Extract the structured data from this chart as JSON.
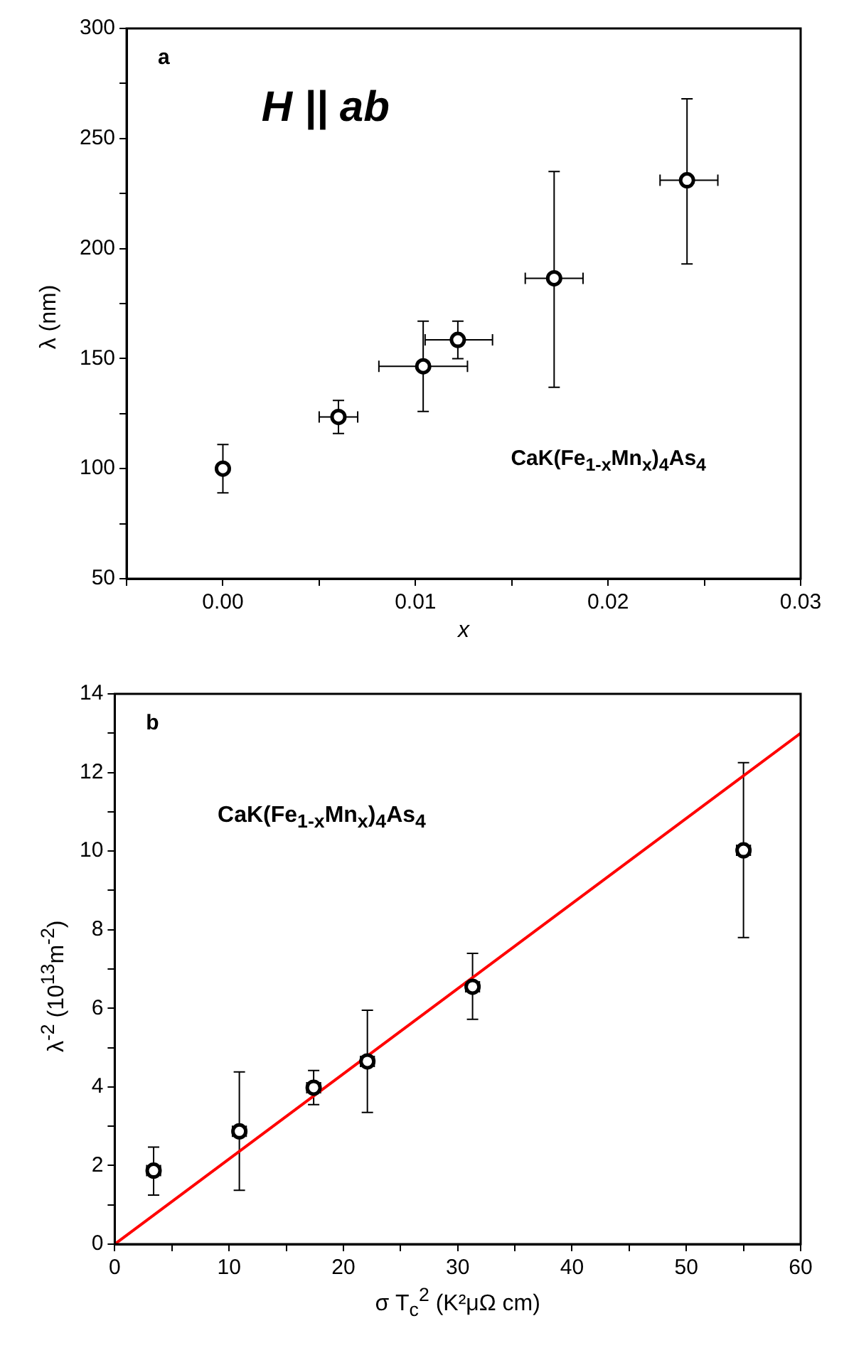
{
  "chart_data": [
    {
      "type": "scatter",
      "title": "a",
      "xlabel": "x",
      "ylabel": "λ (nm)",
      "annotations": [
        "H || ab",
        "CaK(Fe$_{1-x}$Mn$_{x}$)$_{4}$As$_{4}$"
      ],
      "marker": "circle",
      "xlim": [
        -0.005,
        0.03
      ],
      "xticks": [
        {
          "value": -0.005,
          "label": null
        },
        {
          "value": 0,
          "label": "0.00"
        },
        {
          "value": 0.005,
          "label": null
        },
        {
          "value": 0.01,
          "label": "0.01"
        },
        {
          "value": 0.015,
          "label": null
        },
        {
          "value": 0.02,
          "label": "0.02"
        },
        {
          "value": 0.025,
          "label": null
        },
        {
          "value": 0.03,
          "label": "0.03"
        }
      ],
      "ylim": [
        50,
        300
      ],
      "yticks": [
        50,
        {
          "value": 75,
          "label": null
        },
        100,
        {
          "value": 125,
          "label": null
        },
        150,
        {
          "value": 175,
          "label": null
        },
        200,
        {
          "value": 225,
          "label": null
        },
        250,
        {
          "value": 275,
          "label": null
        },
        300
      ],
      "series": [
        {
          "type": "scatter",
          "color": "#000000",
          "x": [
            0,
            0.006,
            0.0104,
            0.0122,
            0.0172,
            0.0241
          ],
          "values": [
            100,
            123.5,
            146.5,
            158.5,
            186.5,
            231
          ],
          "errors": [
            [
              89,
              111
            ],
            [
              116,
              131
            ],
            [
              126,
              167
            ],
            [
              150,
              167
            ],
            [
              137,
              235
            ],
            [
              193,
              268
            ]
          ],
          "xerrors": [
            null,
            [
              0.005,
              0.007
            ],
            [
              0.0081,
              0.0127
            ],
            [
              0.0105,
              0.014
            ],
            [
              0.0157,
              0.0187
            ],
            [
              0.0227,
              0.0257
            ]
          ]
        }
      ]
    },
    {
      "type": "scatter",
      "title": "b",
      "xlabel": "σ T$_{c}$$^{2}$ (K²μΩ cm)",
      "ylabel": "λ$^{-2}$ (10$^{13}$m$^{-2}$)",
      "annotations": [
        "CaK(Fe$_{1-x}$Mn$_{x}$)$_{4}$As$_{4}$"
      ],
      "marker": "circle",
      "xlim": [
        0,
        60
      ],
      "xticks": [
        0,
        {
          "value": 5,
          "label": null
        },
        10,
        {
          "value": 15,
          "label": null
        },
        20,
        {
          "value": 25,
          "label": null
        },
        30,
        {
          "value": 35,
          "label": null
        },
        40,
        {
          "value": 45,
          "label": null
        },
        50,
        {
          "value": 55,
          "label": null
        },
        60
      ],
      "ylim": [
        0,
        14
      ],
      "yticks": [
        0,
        {
          "value": 1,
          "label": null
        },
        2,
        {
          "value": 3,
          "label": null
        },
        4,
        {
          "value": 5,
          "label": null
        },
        6,
        {
          "value": 7,
          "label": null
        },
        8,
        {
          "value": 9,
          "label": null
        },
        10,
        {
          "value": 11,
          "label": null
        },
        12,
        {
          "value": 13,
          "label": null
        },
        14
      ],
      "series": [
        {
          "type": "scatter",
          "color": "#000000",
          "x": [
            3.4,
            10.9,
            17.4,
            22.1,
            31.3,
            55
          ],
          "values": [
            1.87,
            2.87,
            3.98,
            4.65,
            6.55,
            10.02
          ],
          "errors": [
            [
              1.25,
              2.47
            ],
            [
              1.37,
              4.38
            ],
            [
              3.55,
              4.42
            ],
            [
              3.35,
              5.95
            ],
            [
              5.72,
              7.4
            ],
            [
              7.8,
              12.25
            ]
          ],
          "xerrors": [
            [
              2.8,
              4
            ],
            [
              10.3,
              11.5
            ],
            [
              16.8,
              18
            ],
            [
              21.5,
              22.7
            ],
            [
              30.7,
              31.9
            ],
            [
              54.4,
              55.6
            ]
          ]
        },
        {
          "type": "line",
          "color": "#ff0000",
          "marker": "none",
          "x": [
            0,
            60
          ],
          "values": [
            0,
            13
          ]
        }
      ]
    }
  ]
}
